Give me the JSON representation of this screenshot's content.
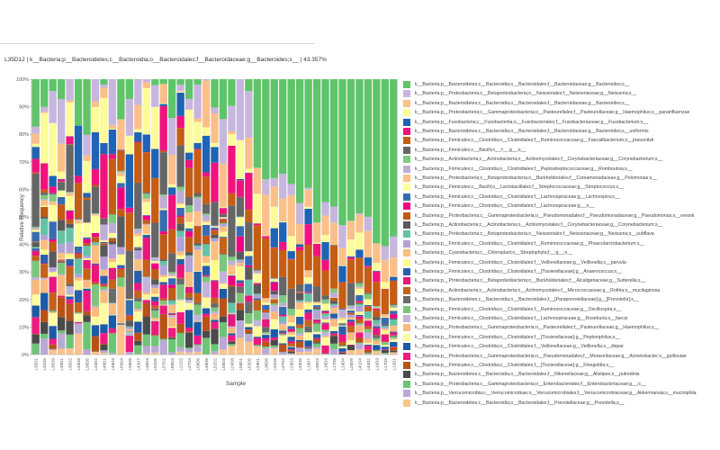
{
  "hover_text": "L35D12 | k__Bacteria;p__Bacteroidetes;c__Bacteroidia;o__Bacteroidales;f__Bacteroidaceae;g__Bacteroides;s__ | 43.357%",
  "chart_data": {
    "type": "stacked-bar",
    "xlabel": "Sample",
    "ylabel": "Relative Frequency",
    "ylim": [
      0,
      100
    ],
    "y_ticks": [
      "0%",
      "10%",
      "20%",
      "30%",
      "40%",
      "50%",
      "60%",
      "70%",
      "80%",
      "90%",
      "100%"
    ],
    "grid": false,
    "legend_position": "right",
    "samples": [
      "L35D1",
      "L32D5",
      "L35D9",
      "L49D1",
      "L35D2",
      "L33D6",
      "L30D5",
      "L34D2",
      "L48D1",
      "L48D3",
      "L59D4",
      "L39D8",
      "L43D7",
      "L46D3",
      "L52D5",
      "L57D2",
      "L60D4",
      "L21D2",
      "L37D4",
      "L59D8",
      "L46D8",
      "L52D2",
      "L58D3",
      "L24D8",
      "L58D1",
      "L53D5",
      "L29D1",
      "L36D8",
      "L32D6",
      "L37D2",
      "L29D3",
      "L45D5",
      "L19D7",
      "L30D4",
      "L16D3",
      "L17D8",
      "L19D4",
      "L28D9",
      "L41D4",
      "L44D2",
      "L10D3",
      "L17D9",
      "L13D1"
    ],
    "taxa": [
      {
        "name": "k__Bacteria;p__Bacteroidetes;c__Bacteroidia;o__Bacteroidales;f__Bacteroidaceae;g__Bacteroides;s__",
        "color": "#5fc46a"
      },
      {
        "name": "k__Bacteria;p__Proteobacteria;c__Betaproteobacteria;o__Neisseriales;f__Neisseriaceae;g__Neisseria;s__",
        "color": "#c7b6dd"
      },
      {
        "name": "k__Bacteria;p__Bacteroidetes;c__Bacteroidia;o__Bacteroidales;f__Bacteroidaceae;g__Bacteroides;s__",
        "color": "#fbc08a"
      },
      {
        "name": "k__Bacteria;p__Proteobacteria;c__Gammaproteobacteria;o__Pasteurellales;f__Pasteurellaceae;g__Haemophilus;s__parainfluenzae",
        "color": "#fdfb9a"
      },
      {
        "name": "k__Bacteria;p__Fusobacteria;c__Fusobacteriia;o__Fusobacteriales;f__Fusobacteriaceae;g__Fusobacterium;s__",
        "color": "#1f63b4"
      },
      {
        "name": "k__Bacteria;p__Bacteroidetes;c__Bacteroidia;o__Bacteroidales;f__Bacteroidaceae;g__Bacteroides;s__uniformis",
        "color": "#f0127d"
      },
      {
        "name": "k__Bacteria;p__Firmicutes;c__Clostridia;o__Clostridiales;f__Ruminococcaceae;g__Faecalibacterium;s__prausnitzii",
        "color": "#c65d15"
      },
      {
        "name": "k__Bacteria;p__Firmicutes;c__Bacilli;o__;f__;g__;s__",
        "color": "#666666"
      },
      {
        "name": "k__Bacteria;p__Actinobacteria;c__Actinobacteria;o__Actinomycetales;f__Corynebacteriaceae;g__Corynebacterium;s__",
        "color": "#7fc97f"
      },
      {
        "name": "k__Bacteria;p__Firmicutes;c__Clostridia;o__Clostridiales;f__Peptostreptococcaceae;g__Romboutsia;s__",
        "color": "#beaed4"
      },
      {
        "name": "k__Bacteria;p__Proteobacteria;c__Betaproteobacteria;o__Burkholderiales;f__Comamonadaceae;g__Pelomonas;s__",
        "color": "#fdc086"
      },
      {
        "name": "k__Bacteria;p__Firmicutes;c__Bacilli;o__Lactobacillales;f__Streptococcaceae;g__Streptococcus;s__",
        "color": "#ffff99"
      },
      {
        "name": "k__Bacteria;p__Firmicutes;c__Clostridia;o__Clostridiales;f__Lachnospiraceae;g__Lachnospira;s__",
        "color": "#386cb0"
      },
      {
        "name": "k__Bacteria;p__Firmicutes;c__Clostridia;o__Clostridiales;f__Lachnospiraceae;g__;s__",
        "color": "#f0027f"
      },
      {
        "name": "k__Bacteria;p__Proteobacteria;c__Gammaproteobacteria;o__Pseudomonadales;f__Pseudomonadaceae;g__Pseudomonas;s__veronii",
        "color": "#bf5b17"
      },
      {
        "name": "k__Bacteria;p__Actinobacteria;c__Actinobacteria;o__Actinomycetales;f__Corynebacteriaceae;g__Corynebacterium;s__",
        "color": "#5a5a5a"
      },
      {
        "name": "k__Bacteria;p__Proteobacteria;c__Betaproteobacteria;o__Neisseriales;f__Neisseriaceae;g__Neisseria;s__subflava",
        "color": "#66c2a5"
      },
      {
        "name": "k__Bacteria;p__Firmicutes;c__Clostridia;o__Clostridiales;f__Ruminococcaceae;g__Phascolarctobacterium;s__",
        "color": "#b3a2d6"
      },
      {
        "name": "k__Bacteria;p__Cyanobacteria;c__Chloroplast;o__Streptophyta;f__;g__;s__",
        "color": "#f9bf80"
      },
      {
        "name": "k__Bacteria;p__Firmicutes;c__Clostridia;o__Clostridiales;f__Veillonellaceae;g__Veillonella;s__parvula",
        "color": "#fffb8a"
      },
      {
        "name": "k__Bacteria;p__Firmicutes;c__Clostridia;o__Clostridiales;f__[Tissierellaceae];g__Anaerococcus;s__",
        "color": "#2a5fa8"
      },
      {
        "name": "k__Bacteria;p__Proteobacteria;c__Betaproteobacteria;o__Burkholderiales;f__Alcaligenaceae;g__Sutterella;s__",
        "color": "#e8177c"
      },
      {
        "name": "k__Bacteria;p__Actinobacteria;c__Actinobacteria;o__Actinomycetales;f__Micrococcaceae;g__Rothia;s__mucilaginosa",
        "color": "#c2621c"
      },
      {
        "name": "k__Bacteria;p__Bacteroidetes;c__Bacteroidia;o__Bacteroidales;f__[Paraprevotellaceae];g__[Prevotella];s__",
        "color": "#6a6a6a"
      },
      {
        "name": "k__Bacteria;p__Firmicutes;c__Clostridia;o__Clostridiales;f__Ruminococcaceae;g__Oscillospira;s__",
        "color": "#7cc67c"
      },
      {
        "name": "k__Bacteria;p__Firmicutes;c__Clostridia;o__Clostridiales;f__Lachnospiraceae;g__Roseburia;s__faecis",
        "color": "#c3b3da"
      },
      {
        "name": "k__Bacteria;p__Proteobacteria;c__Gammaproteobacteria;o__Pasteurellales;f__Pasteurellaceae;g__Haemophilus;s__",
        "color": "#fbb97c"
      },
      {
        "name": "k__Bacteria;p__Firmicutes;c__Clostridia;o__Clostridiales;f__[Tissierellaceae];g__Peptoniphilus;s__",
        "color": "#fefc9c"
      },
      {
        "name": "k__Bacteria;p__Firmicutes;c__Clostridia;o__Clostridiales;f__Veillonellaceae;g__Veillonella;s__dispar",
        "color": "#1c5aa6"
      },
      {
        "name": "k__Bacteria;p__Proteobacteria;c__Gammaproteobacteria;o__Pseudomonadales;f__Moraxellaceae;g__Acinetobacter;s__guillouiae",
        "color": "#ee1a80"
      },
      {
        "name": "k__Bacteria;p__Firmicutes;c__Clostridia;o__Clostridiales;f__[Tissierellaceae];g__Finegoldia;s__",
        "color": "#b85216"
      },
      {
        "name": "k__Bacteria;p__Bacteroidetes;c__Bacteroidia;o__Bacteroidales;f__Rikenellaceae;g__Alistipes;s__putredinis",
        "color": "#4a4a4a"
      },
      {
        "name": "k__Bacteria;p__Proteobacteria;c__Gammaproteobacteria;o__Enterobacteriales;f__Enterobacteriaceae;g__;s__",
        "color": "#6cc474"
      },
      {
        "name": "k__Bacteria;p__Verrucomicrobia;c__Verrucomicrobiae;o__Verrucomicrobiales;f__Verrucomicrobiaceae;g__Akkermansia;s__muciniphila",
        "color": "#bba9d5"
      },
      {
        "name": "k__Bacteria;p__Bacteroidetes;c__Bacteroidia;o__Bacteroidales;f__Prevotellaceae;g__Prevotella;s__",
        "color": "#fcc48c"
      }
    ]
  }
}
